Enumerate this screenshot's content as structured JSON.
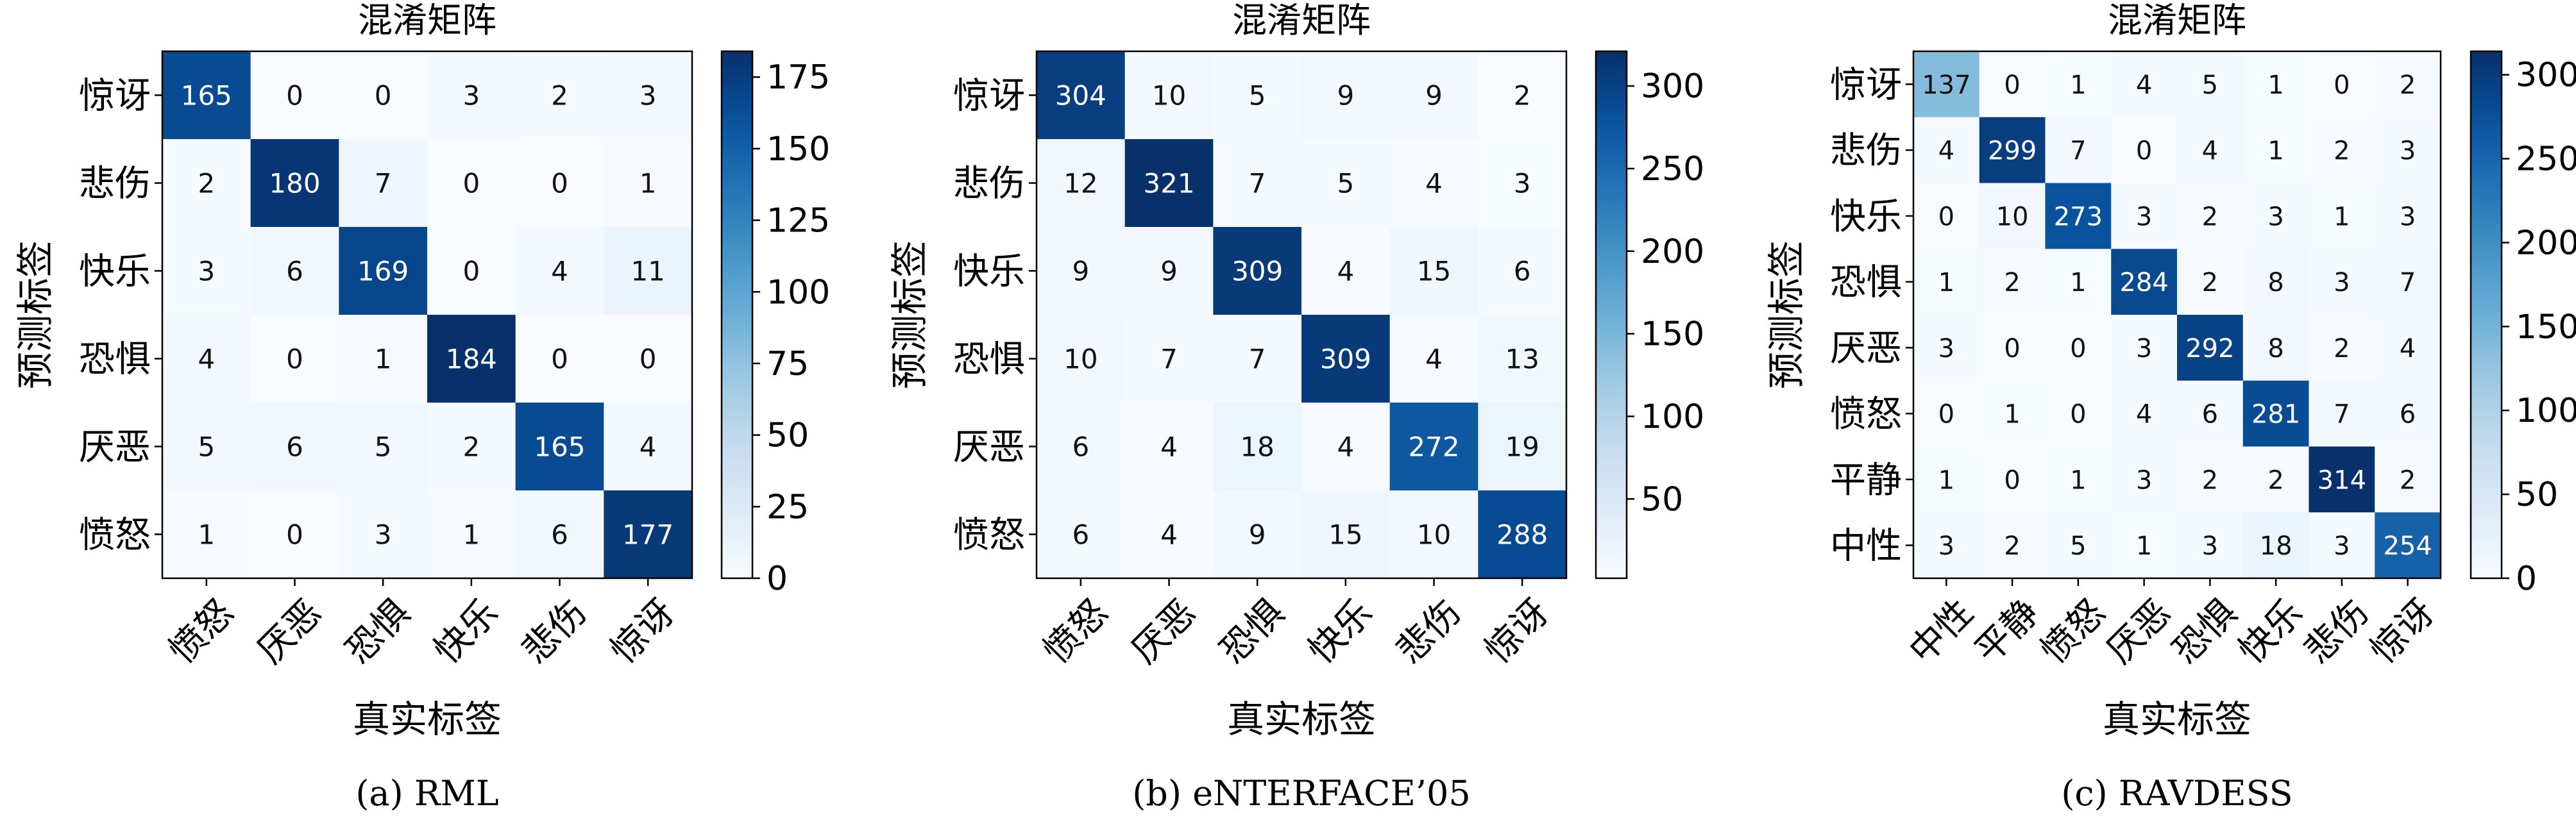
{
  "chart_data": [
    {
      "type": "heatmap",
      "caption": "(a) RML",
      "title": "混淆矩阵",
      "xlabel": "真实标签",
      "ylabel": "预测标签",
      "row_labels": [
        "惊讶",
        "悲伤",
        "快乐",
        "恐惧",
        "厌恶",
        "愤怒"
      ],
      "col_labels": [
        "愤怒",
        "厌恶",
        "恐惧",
        "快乐",
        "悲伤",
        "惊讶"
      ],
      "values": [
        [
          165,
          0,
          0,
          3,
          2,
          3
        ],
        [
          2,
          180,
          7,
          0,
          0,
          1
        ],
        [
          3,
          6,
          169,
          0,
          4,
          11
        ],
        [
          4,
          0,
          1,
          184,
          0,
          0
        ],
        [
          5,
          6,
          5,
          2,
          165,
          4
        ],
        [
          1,
          0,
          3,
          1,
          6,
          177
        ]
      ],
      "colorbar": {
        "min": 0,
        "max": 184,
        "ticks": [
          0,
          25,
          50,
          75,
          100,
          125,
          150,
          175
        ]
      },
      "colormap": "Blues"
    },
    {
      "type": "heatmap",
      "caption": "(b) eNTERFACE’05",
      "title": "混淆矩阵",
      "xlabel": "真实标签",
      "ylabel": "预测标签",
      "row_labels": [
        "惊讶",
        "悲伤",
        "快乐",
        "恐惧",
        "厌恶",
        "愤怒"
      ],
      "col_labels": [
        "愤怒",
        "厌恶",
        "恐惧",
        "快乐",
        "悲伤",
        "惊讶"
      ],
      "values": [
        [
          304,
          10,
          5,
          9,
          9,
          2
        ],
        [
          12,
          321,
          7,
          5,
          4,
          3
        ],
        [
          9,
          9,
          309,
          4,
          15,
          6
        ],
        [
          10,
          7,
          7,
          309,
          4,
          13
        ],
        [
          6,
          4,
          18,
          4,
          272,
          19
        ],
        [
          6,
          4,
          9,
          15,
          10,
          288
        ]
      ],
      "colorbar": {
        "min": 2,
        "max": 321,
        "ticks": [
          50,
          100,
          150,
          200,
          250,
          300
        ]
      },
      "colormap": "Blues"
    },
    {
      "type": "heatmap",
      "caption": "(c) RAVDESS",
      "title": "混淆矩阵",
      "xlabel": "真实标签",
      "ylabel": "预测标签",
      "row_labels": [
        "惊讶",
        "悲伤",
        "快乐",
        "恐惧",
        "厌恶",
        "愤怒",
        "平静",
        "中性"
      ],
      "col_labels": [
        "中性",
        "平静",
        "愤怒",
        "厌恶",
        "恐惧",
        "快乐",
        "悲伤",
        "惊讶"
      ],
      "values": [
        [
          137,
          0,
          1,
          4,
          5,
          1,
          0,
          2
        ],
        [
          4,
          299,
          7,
          0,
          4,
          1,
          2,
          3
        ],
        [
          0,
          10,
          273,
          3,
          2,
          3,
          1,
          3
        ],
        [
          1,
          2,
          1,
          284,
          2,
          8,
          3,
          7
        ],
        [
          3,
          0,
          0,
          3,
          292,
          8,
          2,
          4
        ],
        [
          0,
          1,
          0,
          4,
          6,
          281,
          7,
          6
        ],
        [
          1,
          0,
          1,
          3,
          2,
          2,
          314,
          2
        ],
        [
          3,
          2,
          5,
          1,
          3,
          18,
          3,
          254
        ]
      ],
      "colorbar": {
        "min": 0,
        "max": 314,
        "ticks": [
          0,
          50,
          100,
          150,
          200,
          250,
          300
        ]
      },
      "colormap": "Blues"
    }
  ]
}
